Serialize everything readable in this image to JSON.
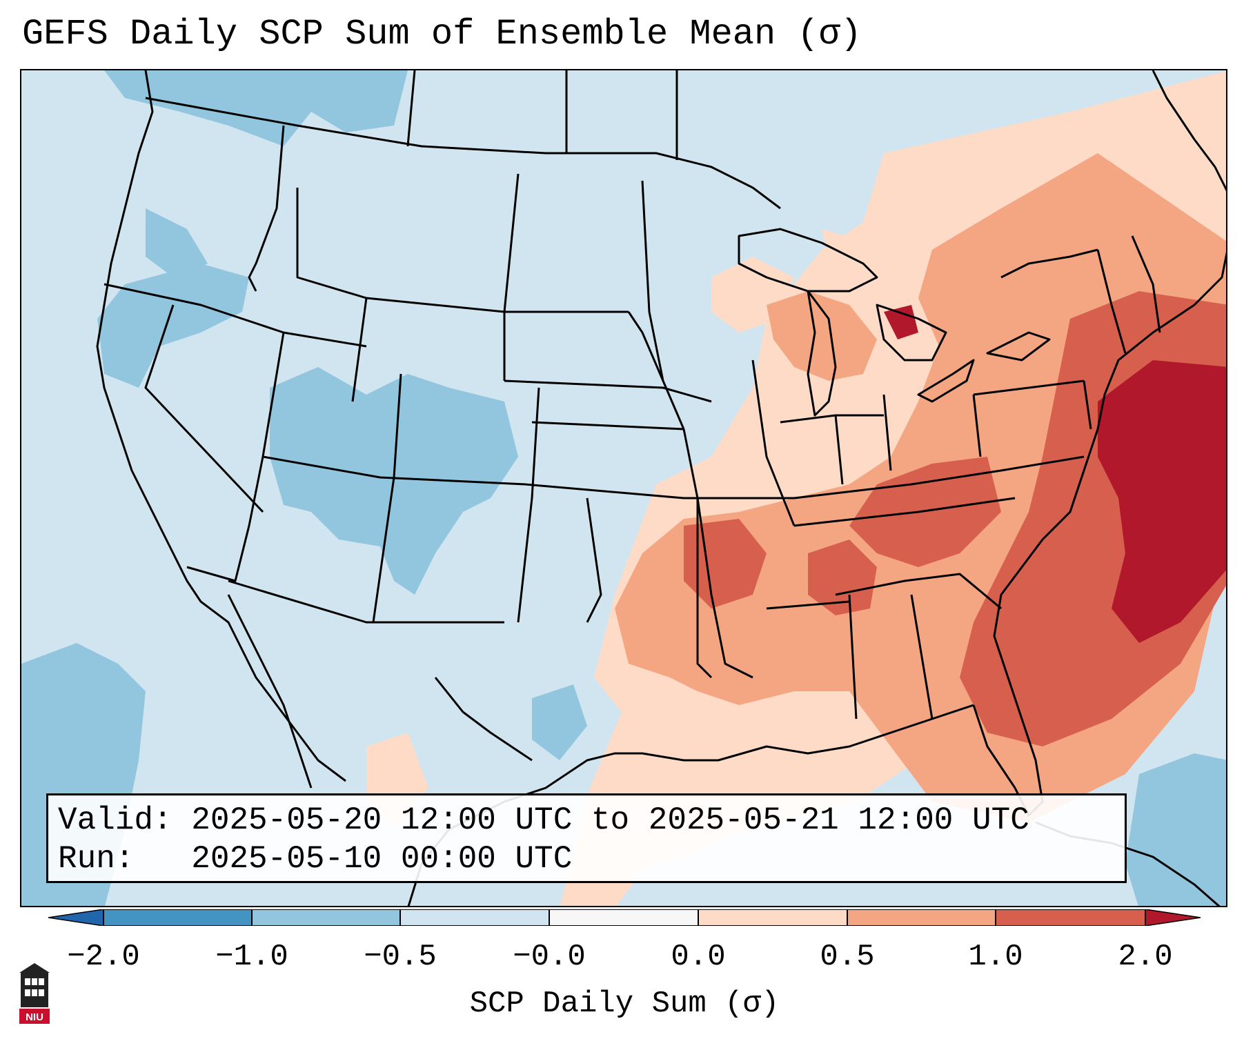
{
  "title": "GEFS Daily SCP Sum of Ensemble Mean (σ)",
  "info": {
    "valid_line": "Valid: 2025-05-20 12:00 UTC to 2025-05-21 12:00 UTC",
    "run_line": "Run:   2025-05-10 00:00 UTC"
  },
  "colorbar": {
    "label": "SCP Daily Sum (σ)",
    "ticks": [
      "−2.0",
      "−1.0",
      "−0.5",
      "−0.0",
      "0.0",
      "0.5",
      "1.0",
      "2.0"
    ],
    "colors": [
      "#4393c3",
      "#92c5de",
      "#d1e5f0",
      "#f7f7f7",
      "#fddbc7",
      "#f4a582",
      "#d6604d",
      "#b2182b"
    ],
    "extend_low_color": "#2166ac",
    "extend_high_color": "#b2182b"
  },
  "logo": {
    "text": "NIU"
  }
}
